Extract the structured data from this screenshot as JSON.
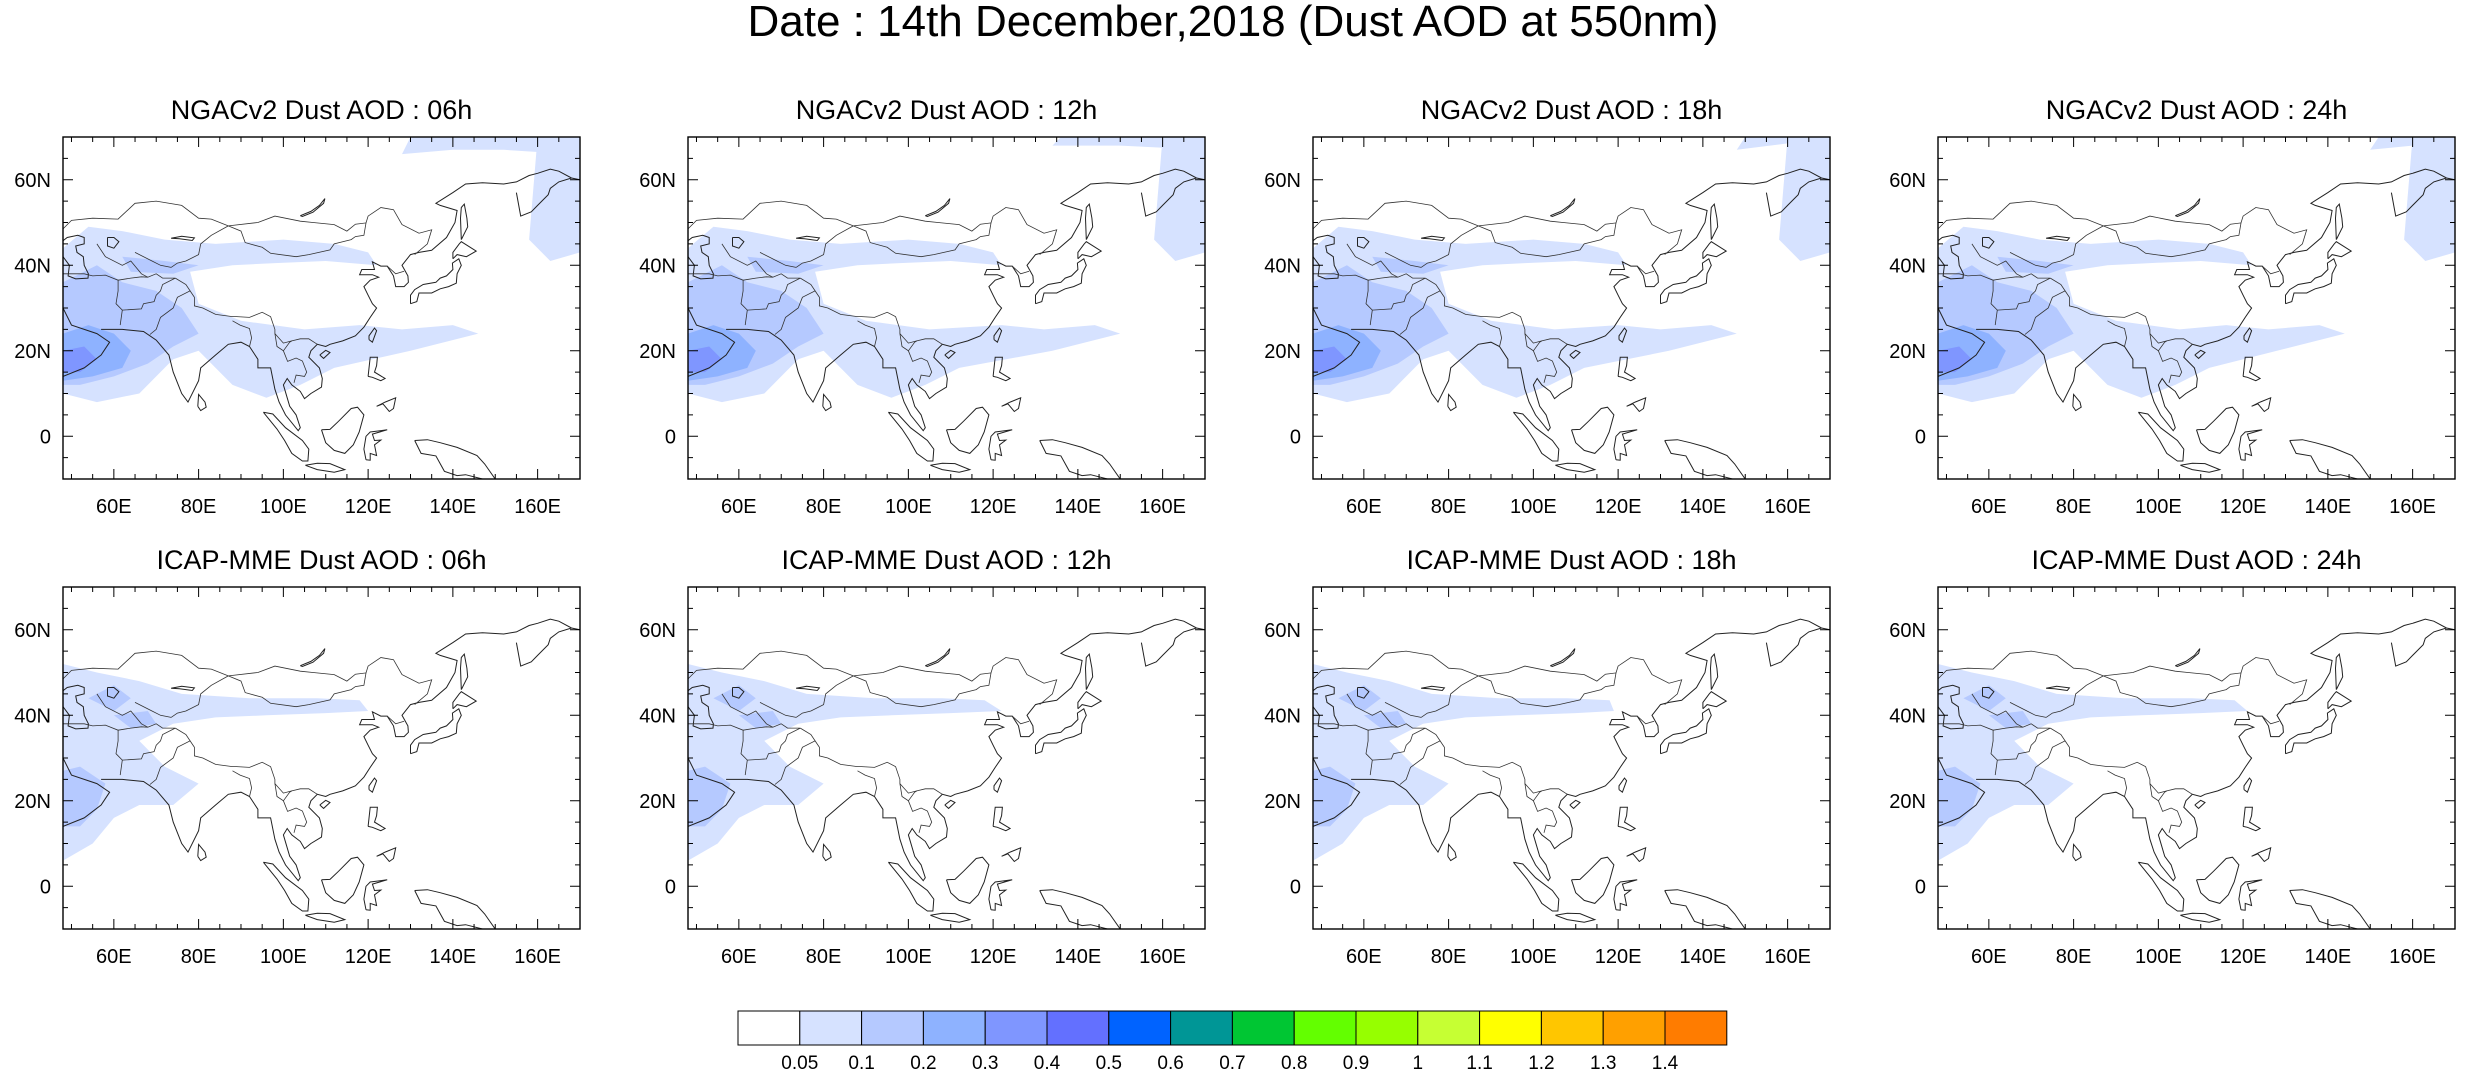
{
  "figure": {
    "title": "Date : 14th December,2018 (Dust AOD at 550nm)"
  },
  "axes": {
    "x_ticks": [
      "60E",
      "80E",
      "100E",
      "120E",
      "140E",
      "160E"
    ],
    "x_tick_values": [
      60,
      80,
      100,
      120,
      140,
      160
    ],
    "y_ticks": [
      "60N",
      "40N",
      "20N",
      "0"
    ],
    "y_tick_values": [
      60,
      40,
      20,
      0
    ],
    "lon_range": [
      48,
      170
    ],
    "lat_range": [
      -10,
      70
    ]
  },
  "panels": [
    {
      "title": "NGACv2 Dust AOD : 06h"
    },
    {
      "title": "NGACv2 Dust AOD : 12h"
    },
    {
      "title": "NGACv2 Dust AOD : 18h"
    },
    {
      "title": "NGACv2 Dust AOD : 24h"
    },
    {
      "title": "ICAP-MME Dust AOD : 06h"
    },
    {
      "title": "ICAP-MME Dust AOD : 12h"
    },
    {
      "title": "ICAP-MME Dust AOD : 18h"
    },
    {
      "title": "ICAP-MME Dust AOD : 24h"
    }
  ],
  "colorbar": {
    "labels": [
      "0.05",
      "0.1",
      "0.2",
      "0.3",
      "0.4",
      "0.5",
      "0.6",
      "0.7",
      "0.8",
      "0.9",
      "1",
      "1.1",
      "1.2",
      "1.3",
      "1.4"
    ],
    "colors": [
      "#ffffff",
      "#d6e2ff",
      "#b5c9ff",
      "#8eb2ff",
      "#7f96ff",
      "#6370ff",
      "#0063ff",
      "#009696",
      "#00c633",
      "#63ff00",
      "#96ff00",
      "#c6ff33",
      "#ffff00",
      "#ffc600",
      "#ffa000",
      "#ff7c00",
      "#ff1900"
    ]
  }
}
